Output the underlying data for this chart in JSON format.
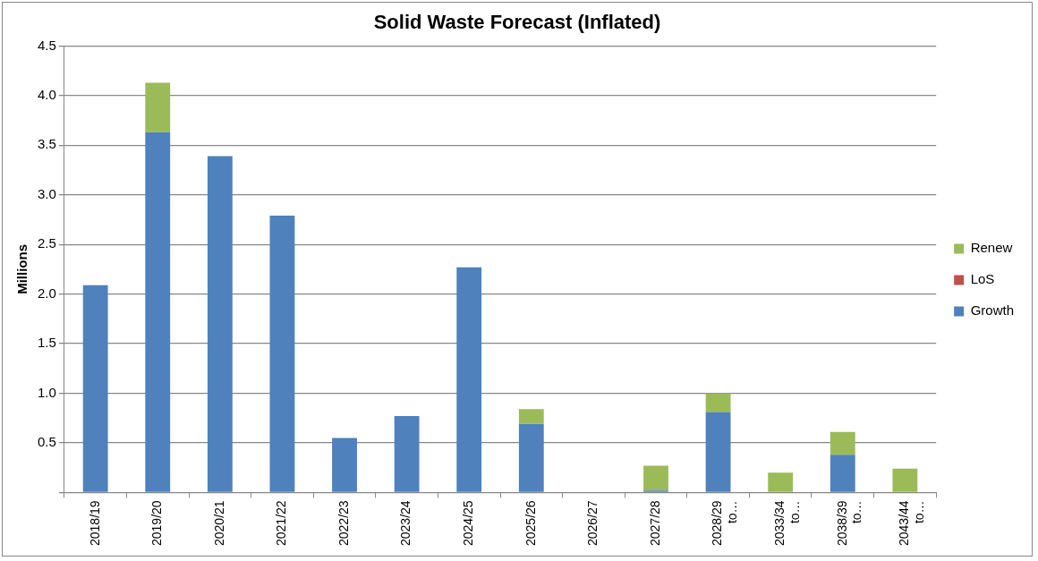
{
  "chart_data": {
    "type": "bar",
    "title": "Solid Waste Forecast (Inflated)",
    "ylabel": "Millions",
    "categories": [
      "2018/19",
      "2019/20",
      "2020/21",
      "2021/22",
      "2022/23",
      "2023/24",
      "2024/25",
      "2025/26",
      "2026/27",
      "2027/28",
      "2028/29\nto…",
      "2033/34\nto…",
      "2038/39\nto…",
      "2043/44\nto…"
    ],
    "series": [
      {
        "name": "Growth",
        "color": "#4f81bd",
        "values": [
          2.09,
          3.63,
          3.39,
          2.79,
          0.55,
          0.77,
          2.27,
          0.69,
          0,
          0.02,
          0.81,
          0,
          0.38,
          0
        ]
      },
      {
        "name": "LoS",
        "color": "#c0504d",
        "values": [
          0,
          0,
          0,
          0,
          0,
          0,
          0,
          0,
          0,
          0,
          0,
          0,
          0,
          0
        ]
      },
      {
        "name": "Renew",
        "color": "#9bbb59",
        "values": [
          0,
          0.5,
          0,
          0,
          0,
          0,
          0,
          0.15,
          0,
          0.25,
          0.19,
          0.2,
          0.23,
          0.24
        ]
      }
    ],
    "stacked": true,
    "ylim": [
      0,
      4.5
    ],
    "yticks": [
      {
        "value": 0,
        "label": null
      },
      {
        "value": 0.5,
        "label": "0.5"
      },
      {
        "value": 1,
        "label": "1.0"
      },
      {
        "value": 1.5,
        "label": "1.5"
      },
      {
        "value": 2,
        "label": "2.0"
      },
      {
        "value": 2.5,
        "label": "2.5"
      },
      {
        "value": 3,
        "label": "3.0"
      },
      {
        "value": 3.5,
        "label": "3.5"
      },
      {
        "value": 4,
        "label": "4.0"
      },
      {
        "value": 4.5,
        "label": "4.5"
      }
    ],
    "grid": "y",
    "legend": "right"
  }
}
